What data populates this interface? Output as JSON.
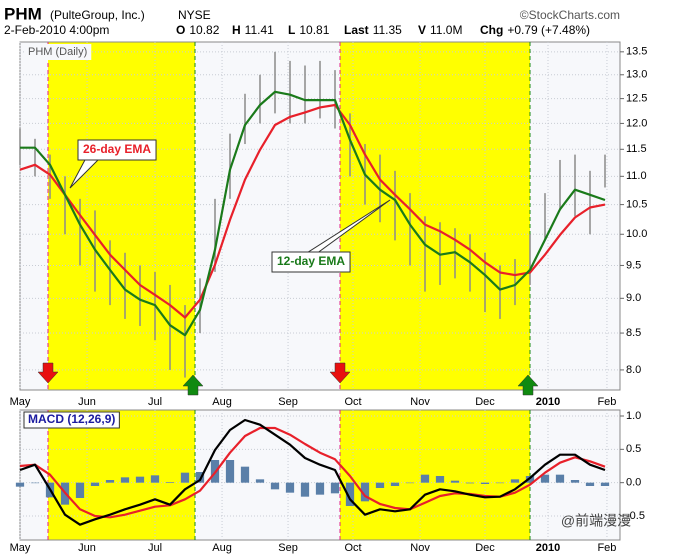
{
  "header": {
    "symbol": "PHM",
    "company": "(PulteGroup, Inc.)",
    "exchange": "NYSE",
    "source": "©StockCharts.com",
    "date": "2-Feb-2010 4:00pm",
    "quote": [
      {
        "label": "O",
        "value": "10.82"
      },
      {
        "label": "H",
        "value": "11.41"
      },
      {
        "label": "L",
        "value": "10.81"
      },
      {
        "label": "Last",
        "value": "11.35"
      },
      {
        "label": "V",
        "value": "11.0M"
      },
      {
        "label": "Chg",
        "value": "+0.79 (+7.48%)"
      }
    ],
    "watermark": "@前端漫漫"
  },
  "chart_data": [
    {
      "type": "line",
      "title": "PHM (Daily)",
      "log": true,
      "grid": true,
      "x": [
        0,
        1,
        2,
        3,
        4,
        5,
        6,
        7,
        8,
        9,
        10,
        11,
        12,
        13,
        14,
        15,
        16,
        17,
        18,
        19,
        20,
        21,
        22,
        23,
        24,
        25,
        26,
        27,
        28,
        29,
        30,
        31,
        32,
        33,
        34,
        35,
        36,
        37,
        38,
        39
      ],
      "xlim": [
        0,
        40
      ],
      "xticks": [
        {
          "value": 0,
          "label": "May"
        },
        {
          "value": 4.47,
          "label": "Jun"
        },
        {
          "value": 9.0,
          "label": "Jul"
        },
        {
          "value": 13.47,
          "label": "Aug"
        },
        {
          "value": 17.87,
          "label": "Sep"
        },
        {
          "value": 22.2,
          "label": "Oct"
        },
        {
          "value": 26.67,
          "label": "Nov"
        },
        {
          "value": 31.0,
          "label": "Dec"
        },
        {
          "value": 35.2,
          "label": "2010"
        },
        {
          "value": 39.13,
          "label": "Feb"
        }
      ],
      "ylim": [
        7.74,
        13.72
      ],
      "yticks": [
        {
          "value": 8.0,
          "label": "8.0"
        },
        8.5,
        {
          "value": 9.0,
          "label": "9.0"
        },
        9.5,
        {
          "value": 10.0,
          "label": "10.0"
        },
        10.5,
        {
          "value": 11.0,
          "label": "11.0"
        },
        11.5,
        {
          "value": 12.0,
          "label": "12.0"
        },
        12.5,
        {
          "value": 13.0,
          "label": "13.0"
        },
        13.5
      ],
      "bar_color": "#8a8a8a",
      "high": [
        11.9,
        11.7,
        11.4,
        11.0,
        10.6,
        10.4,
        9.9,
        9.7,
        9.5,
        9.4,
        9.2,
        8.9,
        9.3,
        10.6,
        11.8,
        12.6,
        13.0,
        13.5,
        13.3,
        13.2,
        13.3,
        13.1,
        12.2,
        11.6,
        11.4,
        11.1,
        10.7,
        10.3,
        10.2,
        10.1,
        10.0,
        9.7,
        9.5,
        9.6,
        10.0,
        10.7,
        11.3,
        11.4,
        11.1,
        11.4
      ],
      "low": [
        11.2,
        11.0,
        10.6,
        10.0,
        9.5,
        9.1,
        8.9,
        8.7,
        8.6,
        8.4,
        8.0,
        7.9,
        8.5,
        9.4,
        10.6,
        11.6,
        12.0,
        12.2,
        12.0,
        12.0,
        12.1,
        11.9,
        11.0,
        10.5,
        10.2,
        9.9,
        9.5,
        9.1,
        9.2,
        9.3,
        9.1,
        8.8,
        8.7,
        8.9,
        9.2,
        9.9,
        10.4,
        10.3,
        10.0,
        10.8
      ],
      "series": [
        {
          "name": "26-day EMA",
          "color": "#e8202a",
          "values": [
            11.12,
            11.21,
            11.03,
            10.67,
            10.32,
            9.99,
            9.67,
            9.43,
            9.2,
            9.05,
            8.9,
            8.72,
            8.98,
            9.51,
            10.24,
            10.94,
            11.49,
            11.97,
            12.13,
            12.22,
            12.32,
            12.37,
            11.97,
            11.4,
            10.94,
            10.67,
            10.42,
            10.16,
            10.05,
            9.91,
            9.75,
            9.55,
            9.39,
            9.35,
            9.39,
            9.67,
            9.99,
            10.28,
            10.45,
            10.5
          ]
        },
        {
          "name": "12-day EMA",
          "color": "#1a7a1a",
          "values": [
            11.53,
            11.53,
            11.21,
            10.67,
            10.16,
            9.75,
            9.43,
            9.13,
            8.98,
            8.9,
            8.61,
            8.47,
            8.83,
            9.75,
            11.12,
            11.97,
            12.37,
            12.64,
            12.58,
            12.47,
            12.47,
            12.47,
            11.68,
            11.03,
            10.76,
            10.58,
            10.16,
            9.83,
            9.67,
            9.71,
            9.55,
            9.35,
            9.13,
            9.2,
            9.43,
            9.91,
            10.42,
            10.76,
            10.67,
            10.58
          ]
        }
      ]
    },
    {
      "type": "line",
      "title": "MACD (12,26,9)",
      "grid": true,
      "xlim": [
        0,
        40
      ],
      "xticks": [
        {
          "value": 0,
          "label": "May"
        },
        {
          "value": 4.47,
          "label": "Jun"
        },
        {
          "value": 9.0,
          "label": "Jul"
        },
        {
          "value": 13.47,
          "label": "Aug"
        },
        {
          "value": 17.87,
          "label": "Sep"
        },
        {
          "value": 22.2,
          "label": "Oct"
        },
        {
          "value": 26.67,
          "label": "Nov"
        },
        {
          "value": 31.0,
          "label": "Dec"
        },
        {
          "value": 35.2,
          "label": "2010"
        },
        {
          "value": 39.13,
          "label": "Feb"
        }
      ],
      "ylim": [
        -0.86,
        1.09
      ],
      "yticks": [
        -0.5,
        {
          "value": 0.0,
          "label": "0.0"
        },
        0.5,
        {
          "value": 1.0,
          "label": "1.0"
        }
      ],
      "series": [
        {
          "type": "bar",
          "color": "#5a7fa8",
          "values": [
            -0.06,
            0,
            -0.22,
            -0.33,
            -0.23,
            -0.05,
            0.04,
            0.08,
            0.09,
            0.11,
            0.01,
            0.15,
            0.16,
            0.34,
            0.34,
            0.24,
            0.05,
            -0.1,
            -0.15,
            -0.21,
            -0.18,
            -0.16,
            -0.35,
            -0.28,
            -0.08,
            -0.05,
            0,
            0.12,
            0.1,
            0.03,
            -0.01,
            -0.02,
            0,
            0.05,
            0.1,
            0.12,
            0.12,
            0.04,
            -0.05,
            -0.05
          ]
        },
        {
          "type": "line",
          "color": "#e8202a",
          "values": [
            0.25,
            0.27,
            0.12,
            -0.15,
            -0.4,
            -0.5,
            -0.52,
            -0.48,
            -0.42,
            -0.36,
            -0.34,
            -0.25,
            -0.12,
            0.15,
            0.45,
            0.7,
            0.82,
            0.82,
            0.72,
            0.58,
            0.45,
            0.35,
            0.1,
            -0.2,
            -0.32,
            -0.38,
            -0.4,
            -0.3,
            -0.2,
            -0.16,
            -0.17,
            -0.2,
            -0.21,
            -0.15,
            -0.03,
            0.15,
            0.3,
            0.38,
            0.32,
            0.24
          ]
        },
        {
          "type": "line",
          "color": "#000000",
          "values": [
            0.19,
            0.27,
            -0.1,
            -0.48,
            -0.63,
            -0.55,
            -0.48,
            -0.4,
            -0.33,
            -0.25,
            -0.33,
            -0.1,
            0.04,
            0.49,
            0.79,
            0.94,
            0.87,
            0.72,
            0.57,
            0.37,
            0.27,
            0.19,
            -0.25,
            -0.48,
            -0.4,
            -0.43,
            -0.4,
            -0.18,
            -0.1,
            -0.13,
            -0.18,
            -0.22,
            -0.21,
            -0.1,
            0.07,
            0.27,
            0.42,
            0.42,
            0.27,
            0.19
          ]
        }
      ]
    }
  ]
}
